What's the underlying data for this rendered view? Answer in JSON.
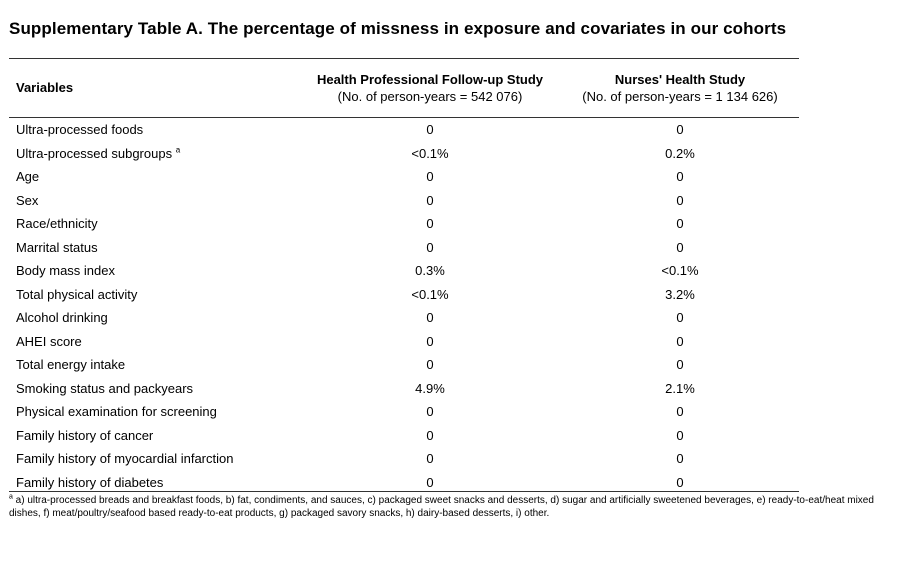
{
  "title": "Supplementary Table A. The percentage of missness in exposure and covariates in our cohorts",
  "header": {
    "variables_label": "Variables",
    "hpfs": {
      "name": "Health Professional Follow-up Study",
      "subtitle": "(No. of person-years = 542 076)"
    },
    "nhs": {
      "name": "Nurses' Health Study",
      "subtitle": "(No. of person-years = 1 134 626)"
    }
  },
  "rows": [
    {
      "variable": "Ultra-processed foods",
      "marker": "",
      "hpfs": "0",
      "nhs": "0"
    },
    {
      "variable": "Ultra-processed subgroups",
      "marker": "a",
      "hpfs": "<0.1%",
      "nhs": "0.2%"
    },
    {
      "variable": "Age",
      "marker": "",
      "hpfs": "0",
      "nhs": "0"
    },
    {
      "variable": "Sex",
      "marker": "",
      "hpfs": "0",
      "nhs": "0"
    },
    {
      "variable": "Race/ethnicity",
      "marker": "",
      "hpfs": "0",
      "nhs": "0"
    },
    {
      "variable": "Marrital status",
      "marker": "",
      "hpfs": "0",
      "nhs": "0"
    },
    {
      "variable": "Body mass index",
      "marker": "",
      "hpfs": "0.3%",
      "nhs": "<0.1%"
    },
    {
      "variable": "Total physical activity",
      "marker": "",
      "hpfs": "<0.1%",
      "nhs": "3.2%"
    },
    {
      "variable": "Alcohol drinking",
      "marker": "",
      "hpfs": "0",
      "nhs": "0"
    },
    {
      "variable": "AHEI score",
      "marker": "",
      "hpfs": "0",
      "nhs": "0"
    },
    {
      "variable": "Total energy intake",
      "marker": "",
      "hpfs": "0",
      "nhs": "0"
    },
    {
      "variable": "Smoking status and packyears",
      "marker": "",
      "hpfs": "4.9%",
      "nhs": "2.1%"
    },
    {
      "variable": "Physical examination for screening",
      "marker": "",
      "hpfs": "0",
      "nhs": "0"
    },
    {
      "variable": "Family history of cancer",
      "marker": "",
      "hpfs": "0",
      "nhs": "0"
    },
    {
      "variable": "Family history of myocardial infarction",
      "marker": "",
      "hpfs": "0",
      "nhs": "0"
    },
    {
      "variable": "Family history of diabetes",
      "marker": "",
      "hpfs": "0",
      "nhs": "0"
    }
  ],
  "footnote": {
    "marker": "a",
    "text": " a) ultra-processed breads and breakfast foods, b) fat, condiments, and sauces, c) packaged sweet snacks and desserts, d) sugar and artificially sweetened beverages, e) ready-to-eat/heat mixed dishes, f) meat/poultry/seafood based ready-to-eat products, g) packaged savory snacks, h) dairy-based desserts, i) other."
  }
}
